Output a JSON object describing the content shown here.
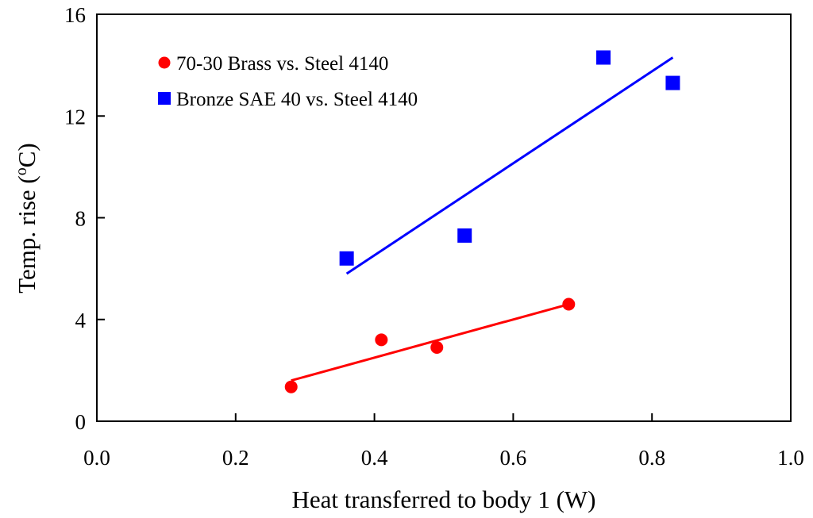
{
  "chart_data": {
    "type": "scatter",
    "title": "",
    "xlabel": "Heat transferred to body 1 (W)",
    "ylabel": {
      "main": "Temp. rise (",
      "sup": "o",
      "unit": "C)"
    },
    "xlim": [
      0.0,
      1.0
    ],
    "ylim": [
      0,
      16
    ],
    "xticks": [
      "0.0",
      "0.2",
      "0.4",
      "0.6",
      "0.8",
      "1.0"
    ],
    "yticks": [
      "0",
      "4",
      "8",
      "12",
      "16"
    ],
    "grid": false,
    "legend_position": "top-left",
    "series": [
      {
        "name": "70-30 Brass vs. Steel 4140",
        "marker": "circle",
        "color": "#ff0000",
        "points": [
          {
            "x": 0.28,
            "y": 1.35
          },
          {
            "x": 0.41,
            "y": 3.2
          },
          {
            "x": 0.49,
            "y": 2.9
          },
          {
            "x": 0.68,
            "y": 4.6
          }
        ],
        "fit": {
          "x": [
            0.28,
            0.68
          ],
          "y": [
            1.6,
            4.6
          ]
        }
      },
      {
        "name": "Bronze SAE 40 vs. Steel 4140",
        "marker": "square",
        "color": "#0000ff",
        "points": [
          {
            "x": 0.36,
            "y": 6.4
          },
          {
            "x": 0.53,
            "y": 7.3
          },
          {
            "x": 0.73,
            "y": 14.3
          },
          {
            "x": 0.83,
            "y": 13.3
          }
        ],
        "fit": {
          "x": [
            0.36,
            0.83
          ],
          "y": [
            5.8,
            14.3
          ]
        }
      }
    ]
  }
}
